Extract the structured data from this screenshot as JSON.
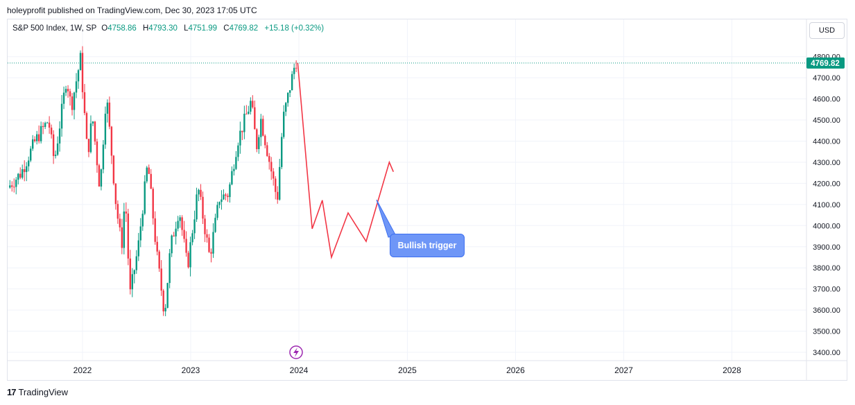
{
  "header": {
    "publisher_line": "holeyprofit published on TradingView.com, Dec 30, 2023 17:05 UTC"
  },
  "legend": {
    "symbol": "S&P 500 Index, 1W, SP",
    "open_label": "O",
    "open": "4758.86",
    "high_label": "H",
    "high": "4793.30",
    "low_label": "L",
    "low": "4751.99",
    "close_label": "C",
    "close": "4769.82",
    "change": "+15.18 (+0.32%)"
  },
  "currency": "USD",
  "footer": {
    "brand": "TradingView",
    "logo_glyph": "17"
  },
  "annotation": {
    "label": "Bullish trigger"
  },
  "colors": {
    "up": "#089981",
    "down": "#f23645",
    "projection": "#f23645",
    "last_price_bg": "#089981",
    "callout": "#6e96f7",
    "event_icon": "#9c27b0"
  },
  "chart_data": {
    "type": "candlestick",
    "symbol": "S&P 500 Index",
    "interval": "1W",
    "x_ticks": [
      "2022",
      "2023",
      "2024",
      "2025",
      "2026",
      "2027",
      "2028"
    ],
    "y_ticks": [
      "3400.00",
      "3500.00",
      "3600.00",
      "3700.00",
      "3800.00",
      "3900.00",
      "4000.00",
      "4100.00",
      "4200.00",
      "4300.00",
      "4400.00",
      "4500.00",
      "4600.00",
      "4700.00",
      "4800.00"
    ],
    "ylim": [
      3395,
      4880
    ],
    "last_price": 4769.82,
    "last_price_label": "4769.82",
    "price_path": [
      [
        "2021-05-01",
        4180
      ],
      [
        "2021-06-15",
        4250
      ],
      [
        "2021-08-01",
        4400
      ],
      [
        "2021-09-15",
        4500
      ],
      [
        "2021-10-05",
        4300
      ],
      [
        "2021-11-15",
        4700
      ],
      [
        "2021-12-01",
        4560
      ],
      [
        "2022-01-01",
        4790
      ],
      [
        "2022-01-25",
        4330
      ],
      [
        "2022-02-10",
        4520
      ],
      [
        "2022-03-08",
        4170
      ],
      [
        "2022-03-29",
        4630
      ],
      [
        "2022-05-01",
        4100
      ],
      [
        "2022-05-20",
        3900
      ],
      [
        "2022-06-01",
        4150
      ],
      [
        "2022-06-17",
        3670
      ],
      [
        "2022-07-15",
        3900
      ],
      [
        "2022-08-16",
        4300
      ],
      [
        "2022-09-15",
        3870
      ],
      [
        "2022-10-12",
        3580
      ],
      [
        "2022-11-01",
        3900
      ],
      [
        "2022-11-30",
        4080
      ],
      [
        "2022-12-28",
        3800
      ],
      [
        "2023-02-02",
        4180
      ],
      [
        "2023-03-13",
        3850
      ],
      [
        "2023-04-15",
        4130
      ],
      [
        "2023-05-15",
        4150
      ],
      [
        "2023-06-15",
        4400
      ],
      [
        "2023-07-31",
        4590
      ],
      [
        "2023-08-18",
        4370
      ],
      [
        "2023-09-01",
        4510
      ],
      [
        "2023-10-27",
        4120
      ],
      [
        "2023-11-15",
        4500
      ],
      [
        "2023-12-28",
        4780
      ]
    ],
    "projection_path": [
      [
        "2023-12-28",
        4770
      ],
      [
        "2024-02-15",
        3985
      ],
      [
        "2024-03-20",
        4120
      ],
      [
        "2024-04-20",
        3850
      ],
      [
        "2024-06-15",
        4060
      ],
      [
        "2024-08-15",
        3925
      ],
      [
        "2024-11-01",
        4300
      ],
      [
        "2024-11-15",
        4255
      ]
    ]
  }
}
